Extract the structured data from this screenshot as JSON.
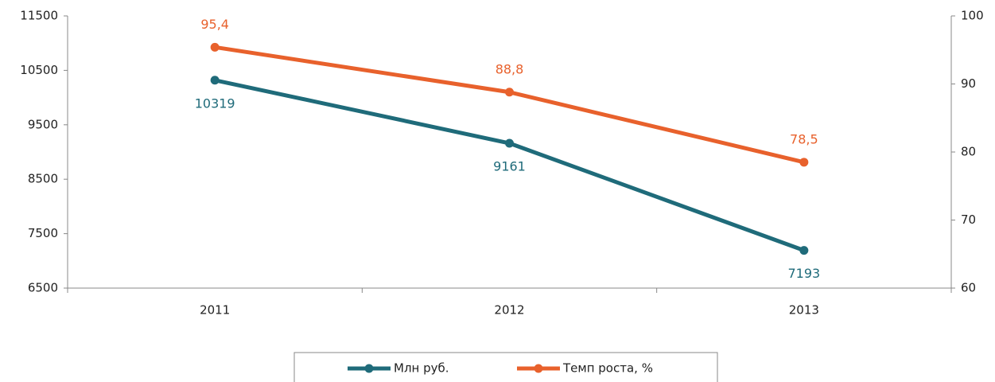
{
  "chart_data": {
    "type": "line",
    "categories": [
      "2011",
      "2012",
      "2013"
    ],
    "series": [
      {
        "name": "Млн руб.",
        "color": "#1f6b7a",
        "values": [
          10319,
          9161,
          7193
        ]
      },
      {
        "name": "Темп роста, %",
        "color": "#e8612c",
        "values": [
          95.4,
          88.8,
          78.5
        ],
        "value_labels": [
          "95,4",
          "88,8",
          "78,5"
        ],
        "axis": "y2"
      }
    ],
    "ylim": [
      6500,
      11500
    ],
    "yticks": [
      6500,
      7500,
      8500,
      9500,
      10500,
      11500
    ],
    "y2lim": [
      60,
      100
    ],
    "y2ticks": [
      60,
      70,
      80,
      90,
      100
    ],
    "legend": "bottom"
  }
}
